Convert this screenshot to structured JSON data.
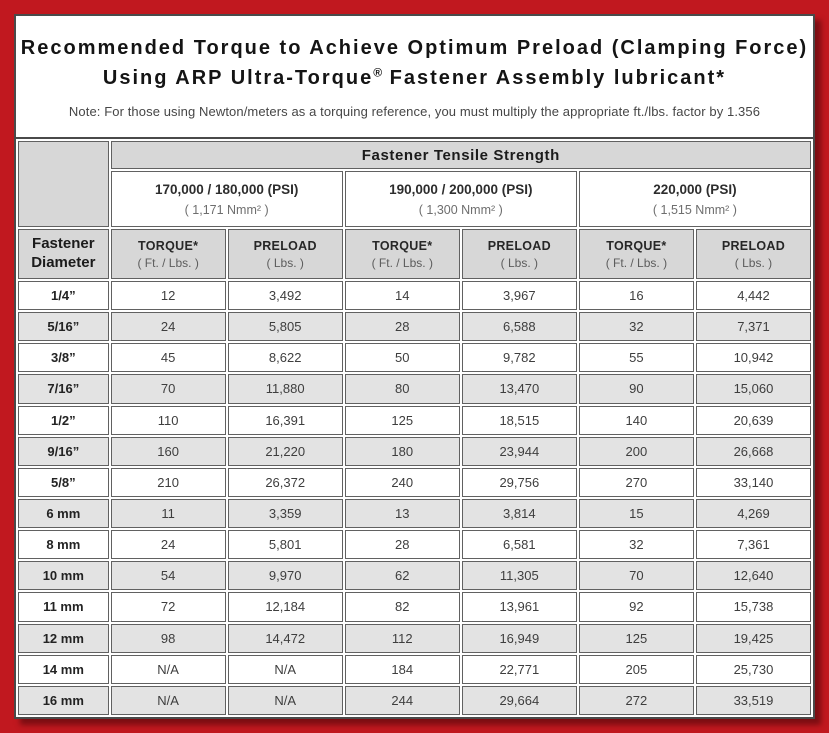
{
  "frame": {
    "border_color": "#c1181f",
    "panel_border_color": "#4a4a4a",
    "header_gray": "#d7d7d7",
    "row_shade_gray": "#e3e3e3"
  },
  "title": {
    "line1": "Recommended Torque to Achieve Optimum Preload (Clamping Force)",
    "line2_pre": "Using ARP Ultra-Torque",
    "line2_reg": "®",
    "line2_post": " Fastener Assembly lubricant*",
    "note": "Note: For those using Newton/meters as a torquing reference, you must multiply the appropriate ft./lbs. factor by 1.356"
  },
  "table": {
    "tensile_header": "Fastener Tensile Strength",
    "diameter_header_line1": "Fastener",
    "diameter_header_line2": "Diameter",
    "strength_groups": [
      {
        "psi": "170,000 / 180,000 (PSI)",
        "nmm": "( 1,171 Nmm² )"
      },
      {
        "psi": "190,000 / 200,000 (PSI)",
        "nmm": "( 1,300 Nmm² )"
      },
      {
        "psi": "220,000 (PSI)",
        "nmm": "( 1,515 Nmm² )"
      }
    ],
    "sub_headers": {
      "torque_label": "TORQUE*",
      "torque_unit": "( Ft. / Lbs. )",
      "preload_label": "PRELOAD",
      "preload_unit": "( Lbs. )"
    },
    "rows": [
      {
        "diameter": "1/4”",
        "values": [
          "12",
          "3,492",
          "14",
          "3,967",
          "16",
          "4,442"
        ]
      },
      {
        "diameter": "5/16”",
        "values": [
          "24",
          "5,805",
          "28",
          "6,588",
          "32",
          "7,371"
        ]
      },
      {
        "diameter": "3/8”",
        "values": [
          "45",
          "8,622",
          "50",
          "9,782",
          "55",
          "10,942"
        ]
      },
      {
        "diameter": "7/16”",
        "values": [
          "70",
          "11,880",
          "80",
          "13,470",
          "90",
          "15,060"
        ]
      },
      {
        "diameter": "1/2”",
        "values": [
          "110",
          "16,391",
          "125",
          "18,515",
          "140",
          "20,639"
        ]
      },
      {
        "diameter": "9/16”",
        "values": [
          "160",
          "21,220",
          "180",
          "23,944",
          "200",
          "26,668"
        ]
      },
      {
        "diameter": "5/8”",
        "values": [
          "210",
          "26,372",
          "240",
          "29,756",
          "270",
          "33,140"
        ]
      },
      {
        "diameter": "6 mm",
        "values": [
          "11",
          "3,359",
          "13",
          "3,814",
          "15",
          "4,269"
        ]
      },
      {
        "diameter": "8 mm",
        "values": [
          "24",
          "5,801",
          "28",
          "6,581",
          "32",
          "7,361"
        ]
      },
      {
        "diameter": "10 mm",
        "values": [
          "54",
          "9,970",
          "62",
          "11,305",
          "70",
          "12,640"
        ]
      },
      {
        "diameter": "11 mm",
        "values": [
          "72",
          "12,184",
          "82",
          "13,961",
          "92",
          "15,738"
        ]
      },
      {
        "diameter": "12 mm",
        "values": [
          "98",
          "14,472",
          "112",
          "16,949",
          "125",
          "19,425"
        ]
      },
      {
        "diameter": "14 mm",
        "values": [
          "N/A",
          "N/A",
          "184",
          "22,771",
          "205",
          "25,730"
        ]
      },
      {
        "diameter": "16 mm",
        "values": [
          "N/A",
          "N/A",
          "244",
          "29,664",
          "272",
          "33,519"
        ]
      }
    ]
  }
}
